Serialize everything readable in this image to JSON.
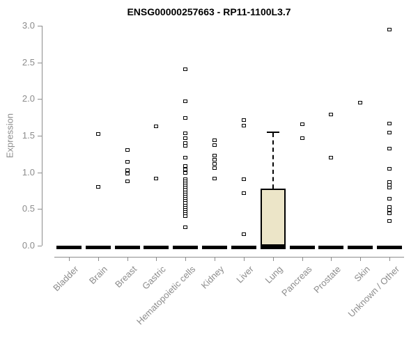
{
  "chart_data": {
    "type": "boxplot",
    "title": "ENSG00000257663 - RP11-1100L3.7",
    "ylabel": "Expression",
    "xlabel": "",
    "ylim": [
      0,
      3
    ],
    "yticks": [
      0,
      0.5,
      1,
      1.5,
      2,
      2.5,
      3
    ],
    "layout_hints": {
      "grid": false,
      "legend": "none",
      "x_tick_rotation": 45
    },
    "colors": {
      "box_fill": "#ece5c8",
      "axis_gray": "#8c8c8c",
      "point_outline": "#000000",
      "box_outline": "#000000"
    },
    "categories": [
      "Bladder",
      "Brain",
      "Breast",
      "Gastric",
      "Hematopoietic cells",
      "Kidney",
      "Liver",
      "Lung",
      "Pancreas",
      "Prostate",
      "Skin",
      "Unknown / Other"
    ],
    "groups": [
      {
        "label": "Bladder",
        "box": {
          "q1": 0,
          "median": 0,
          "q3": 0,
          "whisker_low": 0,
          "whisker_high": 0
        },
        "points": []
      },
      {
        "label": "Brain",
        "box": {
          "q1": 0,
          "median": 0,
          "q3": 0,
          "whisker_low": 0,
          "whisker_high": 0
        },
        "points": [
          1.52,
          0.8
        ]
      },
      {
        "label": "Breast",
        "box": {
          "q1": 0,
          "median": 0,
          "q3": 0,
          "whisker_low": 0,
          "whisker_high": 0
        },
        "points": [
          1.31,
          1.14,
          1.03,
          0.98,
          0.88
        ]
      },
      {
        "label": "Gastric",
        "box": {
          "q1": 0,
          "median": 0,
          "q3": 0,
          "whisker_low": 0,
          "whisker_high": 0
        },
        "points": [
          1.63,
          0.92
        ]
      },
      {
        "label": "Hematopoietic cells",
        "box": {
          "q1": 0,
          "median": 0,
          "q3": 0,
          "whisker_low": 0,
          "whisker_high": 0
        },
        "points": [
          2.41,
          1.97,
          1.74,
          1.53,
          1.47,
          1.4,
          1.36,
          1.2,
          1.09,
          1.04,
          0.99,
          0.91,
          0.88,
          0.85,
          0.82,
          0.79,
          0.76,
          0.73,
          0.7,
          0.67,
          0.64,
          0.61,
          0.58,
          0.55,
          0.52,
          0.49,
          0.46,
          0.43,
          0.4,
          0.25
        ]
      },
      {
        "label": "Kidney",
        "box": {
          "q1": 0,
          "median": 0,
          "q3": 0,
          "whisker_low": 0,
          "whisker_high": 0
        },
        "points": [
          1.44,
          1.37,
          1.23,
          1.17,
          1.12,
          1.06,
          0.92
        ]
      },
      {
        "label": "Liver",
        "box": {
          "q1": 0,
          "median": 0,
          "q3": 0,
          "whisker_low": 0,
          "whisker_high": 0
        },
        "points": [
          1.71,
          1.64,
          0.91,
          0.72,
          0.16
        ]
      },
      {
        "label": "Lung",
        "box": {
          "q1": 0,
          "median": 0,
          "q3": 0.78,
          "whisker_low": 0,
          "whisker_high": 1.55
        },
        "points": []
      },
      {
        "label": "Pancreas",
        "box": {
          "q1": 0,
          "median": 0,
          "q3": 0,
          "whisker_low": 0,
          "whisker_high": 0
        },
        "points": [
          1.66,
          1.47
        ]
      },
      {
        "label": "Prostate",
        "box": {
          "q1": 0,
          "median": 0,
          "q3": 0,
          "whisker_low": 0,
          "whisker_high": 0
        },
        "points": [
          1.79,
          1.2
        ]
      },
      {
        "label": "Skin",
        "box": {
          "q1": 0,
          "median": 0,
          "q3": 0,
          "whisker_low": 0,
          "whisker_high": 0
        },
        "points": [
          1.95
        ]
      },
      {
        "label": "Unknown / Other",
        "box": {
          "q1": 0,
          "median": 0,
          "q3": 0,
          "whisker_low": 0,
          "whisker_high": 0
        },
        "points": [
          2.95,
          1.67,
          1.54,
          1.32,
          1.05,
          0.87,
          0.83,
          0.79,
          0.64,
          0.53,
          0.49,
          0.44,
          0.34
        ]
      }
    ]
  }
}
